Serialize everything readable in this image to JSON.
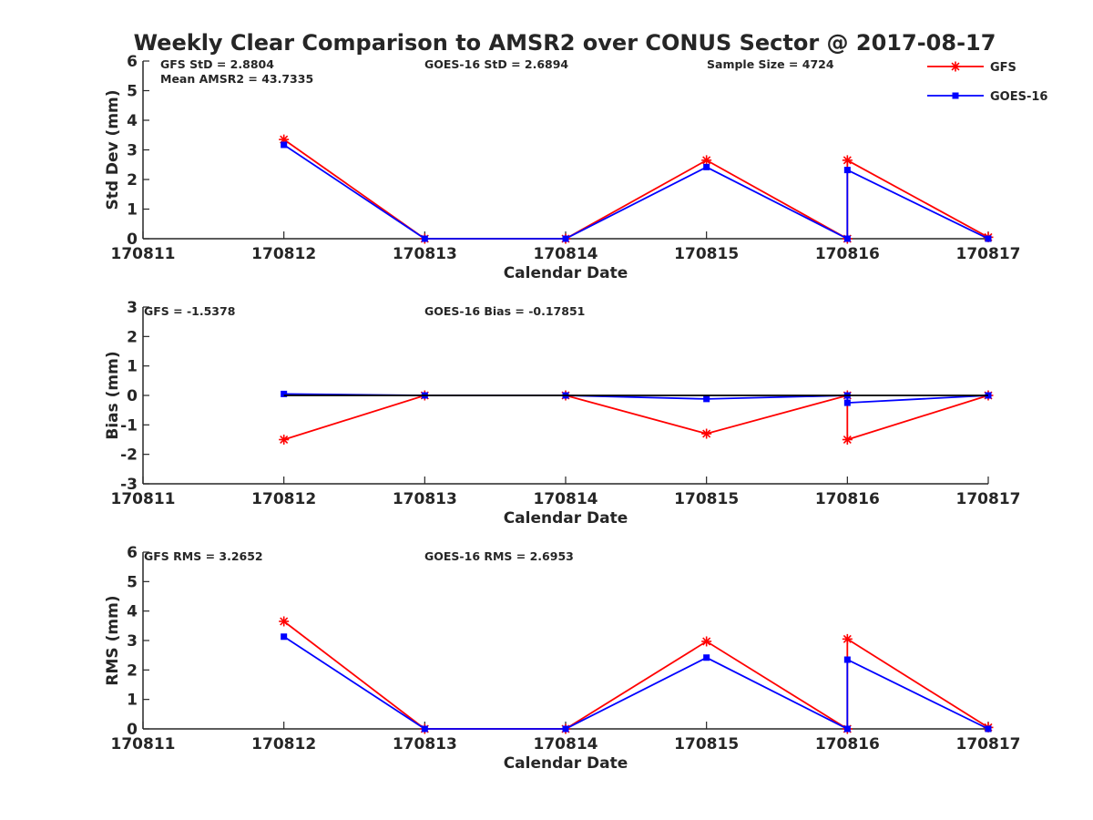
{
  "chart_data": {
    "title": "Weekly Clear Comparison to AMSR2 over CONUS Sector @ 2017-08-17",
    "legend": {
      "placement": "top-right",
      "entries": [
        {
          "name": "GFS",
          "color": "#ff0000",
          "marker": "asterisk"
        },
        {
          "name": "GOES-16",
          "color": "#0000ff",
          "marker": "square"
        }
      ]
    },
    "x": [
      170812,
      170813,
      170814,
      170815,
      170816,
      170816,
      170817
    ],
    "xticks": [
      "170811",
      "170812",
      "170813",
      "170814",
      "170815",
      "170816",
      "170817"
    ],
    "xlim": [
      170811,
      170817
    ],
    "panels": [
      {
        "type": "line",
        "xlabel": "Calendar Date",
        "ylabel": "Std Dev (mm)",
        "ylim": [
          0,
          6
        ],
        "yticks": [
          "0",
          "1",
          "2",
          "3",
          "4",
          "5",
          "6"
        ],
        "annotations": [
          "GFS StD = 2.8804",
          "Mean AMSR2 = 43.7335",
          "GOES-16 StD = 2.6894",
          "Sample Size = 4724"
        ],
        "series": [
          {
            "name": "GFS",
            "values": [
              3.35,
              0,
              0,
              2.65,
              0,
              2.65,
              0.05
            ]
          },
          {
            "name": "GOES-16",
            "values": [
              3.17,
              0,
              0,
              2.42,
              0,
              2.32,
              0
            ]
          }
        ]
      },
      {
        "type": "line",
        "xlabel": "Calendar Date",
        "ylabel": "Bias (mm)",
        "ylim": [
          -3,
          3
        ],
        "yticks": [
          "-3",
          "-2",
          "-1",
          "0",
          "1",
          "2",
          "3"
        ],
        "zero_line": true,
        "annotations": [
          "GFS = -1.5378",
          "GOES-16 Bias  = -0.17851"
        ],
        "series": [
          {
            "name": "GFS",
            "values": [
              -1.5,
              0,
              0,
              -1.3,
              0,
              -1.5,
              0
            ]
          },
          {
            "name": "GOES-16",
            "values": [
              0.05,
              0,
              0,
              -0.12,
              0,
              -0.25,
              0
            ]
          }
        ]
      },
      {
        "type": "line",
        "xlabel": "Calendar Date",
        "ylabel": "RMS (mm)",
        "ylim": [
          0,
          6
        ],
        "yticks": [
          "0",
          "1",
          "2",
          "3",
          "4",
          "5",
          "6"
        ],
        "annotations": [
          "GFS RMS = 3.2652",
          "GOES-16 RMS = 2.6953"
        ],
        "series": [
          {
            "name": "GFS",
            "values": [
              3.65,
              0,
              0,
              2.97,
              0,
              3.05,
              0.05
            ]
          },
          {
            "name": "GOES-16",
            "values": [
              3.13,
              0,
              0,
              2.42,
              0,
              2.35,
              0
            ]
          }
        ]
      }
    ]
  }
}
